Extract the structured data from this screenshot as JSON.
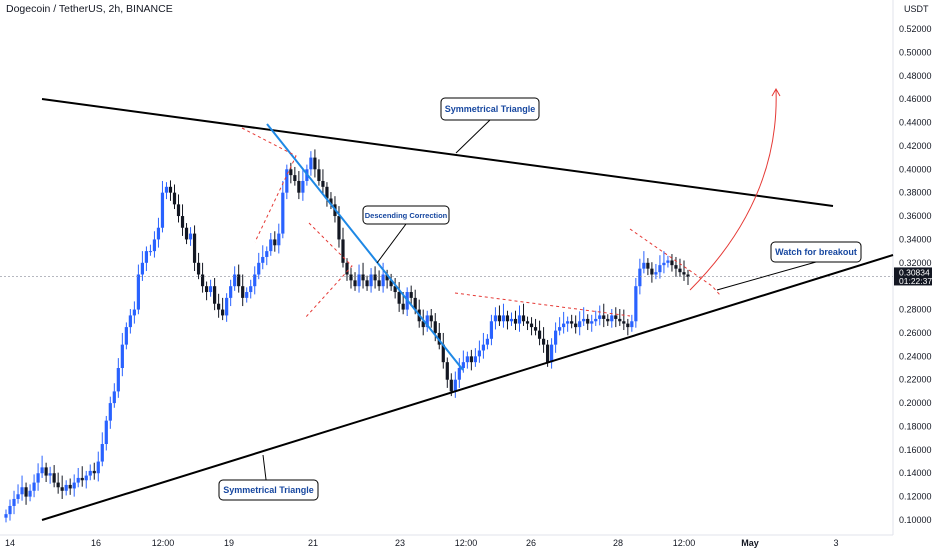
{
  "header": {
    "title": "Dogecoin / TetherUS, 2h, BINANCE"
  },
  "axis": {
    "currency": "USDT",
    "y_ticks": [
      "0.52000",
      "0.50000",
      "0.48000",
      "0.46000",
      "0.44000",
      "0.42000",
      "0.40000",
      "0.38000",
      "0.36000",
      "0.34000",
      "0.32000",
      "0.28000",
      "0.26000",
      "0.24000",
      "0.22000",
      "0.20000",
      "0.18000",
      "0.16000",
      "0.14000",
      "0.12000",
      "0.10000"
    ],
    "x_ticks": [
      "14",
      "16",
      "12:00",
      "19",
      "21",
      "23",
      "12:00",
      "26",
      "28",
      "12:00",
      "May",
      "3"
    ]
  },
  "price": {
    "current": "0.30834",
    "countdown": "01:22:37"
  },
  "annotations": {
    "top_triangle": "Symmetrical Triangle",
    "bottom_triangle": "Symmetrical Triangle",
    "descending": "Descending Correction",
    "breakout": "Watch for breakout"
  },
  "colors": {
    "up": "#2962ff",
    "down": "#131722",
    "accent": "#1e88e5",
    "target_arrow": "#e53935",
    "dashed": "#e53935"
  },
  "chart_data": {
    "type": "candlestick",
    "title": "Dogecoin / TetherUS, 2h, BINANCE",
    "ylim": [
      0.09,
      0.54
    ],
    "y_scale": "linear",
    "x_dates": [
      "14",
      "16",
      "19",
      "21",
      "23",
      "26",
      "28",
      "May",
      "3"
    ],
    "closes": [
      0.105,
      0.112,
      0.118,
      0.122,
      0.128,
      0.12,
      0.125,
      0.132,
      0.14,
      0.145,
      0.138,
      0.14,
      0.132,
      0.128,
      0.125,
      0.13,
      0.127,
      0.132,
      0.136,
      0.134,
      0.138,
      0.142,
      0.14,
      0.15,
      0.165,
      0.185,
      0.2,
      0.21,
      0.23,
      0.25,
      0.265,
      0.275,
      0.28,
      0.31,
      0.32,
      0.33,
      0.33,
      0.34,
      0.35,
      0.38,
      0.385,
      0.38,
      0.37,
      0.36,
      0.35,
      0.34,
      0.345,
      0.32,
      0.31,
      0.3,
      0.295,
      0.3,
      0.285,
      0.28,
      0.275,
      0.29,
      0.3,
      0.31,
      0.3,
      0.29,
      0.295,
      0.3,
      0.31,
      0.32,
      0.325,
      0.33,
      0.34,
      0.335,
      0.345,
      0.38,
      0.4,
      0.395,
      0.39,
      0.38,
      0.39,
      0.4,
      0.41,
      0.4,
      0.39,
      0.385,
      0.375,
      0.37,
      0.36,
      0.34,
      0.32,
      0.31,
      0.305,
      0.3,
      0.31,
      0.305,
      0.3,
      0.31,
      0.305,
      0.3,
      0.31,
      0.305,
      0.3,
      0.295,
      0.285,
      0.28,
      0.295,
      0.29,
      0.28,
      0.27,
      0.265,
      0.275,
      0.27,
      0.26,
      0.25,
      0.235,
      0.22,
      0.21,
      0.22,
      0.23,
      0.235,
      0.24,
      0.235,
      0.24,
      0.245,
      0.25,
      0.255,
      0.27,
      0.275,
      0.27,
      0.275,
      0.27,
      0.272,
      0.268,
      0.275,
      0.27,
      0.268,
      0.265,
      0.262,
      0.255,
      0.25,
      0.235,
      0.25,
      0.262,
      0.265,
      0.268,
      0.27,
      0.268,
      0.265,
      0.27,
      0.272,
      0.268,
      0.27,
      0.272,
      0.275,
      0.272,
      0.27,
      0.275,
      0.272,
      0.27,
      0.268,
      0.265,
      0.27,
      0.3,
      0.315,
      0.32,
      0.315,
      0.31,
      0.312,
      0.318,
      0.32,
      0.322,
      0.318,
      0.315,
      0.312,
      0.31,
      0.308
    ]
  }
}
